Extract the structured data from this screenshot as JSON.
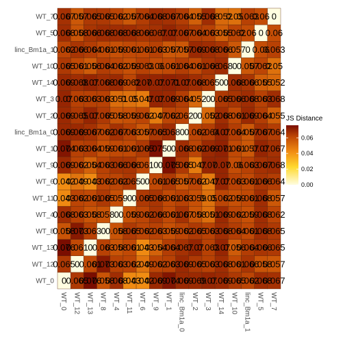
{
  "chart_data": {
    "type": "heatmap",
    "title": "",
    "xlabel": "",
    "ylabel": "",
    "labels": [
      "WT_0",
      "WT_12",
      "WT_13",
      "WT_8",
      "WT_4",
      "WT_11",
      "WT_6",
      "WT_9",
      "WT_1",
      "linc_Bm1a_0",
      "WT_2",
      "WT_3",
      "WT_14",
      "WT_10",
      "linc_Bm1a_1",
      "WT_5",
      "WT_7"
    ],
    "matrix": [
      [
        0.0,
        0.065,
        0.076,
        0.058,
        0.068,
        0.043,
        0.042,
        0.069,
        0.074,
        0.069,
        0.069,
        0.07,
        0.069,
        0.065,
        0.062,
        0.068,
        0.067
      ],
      [
        0.065,
        0.0,
        0.061,
        0.073,
        0.063,
        0.062,
        0.049,
        0.062,
        0.063,
        0.069,
        0.065,
        0.063,
        0.068,
        0.061,
        0.066,
        0.058,
        0.057
      ],
      [
        0.076,
        0.061,
        0.0,
        0.063,
        0.058,
        0.061,
        0.043,
        0.054,
        0.064,
        0.067,
        0.07,
        0.063,
        0.07,
        0.056,
        0.064,
        0.066,
        0.065
      ],
      [
        0.058,
        0.073,
        0.063,
        0.0,
        0.058,
        0.065,
        0.062,
        0.063,
        0.059,
        0.062,
        0.065,
        0.063,
        0.068,
        0.064,
        0.061,
        0.068,
        0.065
      ],
      [
        0.068,
        0.063,
        0.058,
        0.058,
        0.0,
        0.059,
        0.062,
        0.066,
        0.061,
        0.067,
        0.058,
        0.051,
        0.069,
        0.062,
        0.059,
        0.068,
        0.062
      ],
      [
        0.043,
        0.062,
        0.061,
        0.065,
        0.059,
        0.0,
        0.065,
        0.066,
        0.061,
        0.063,
        0.059,
        0.05,
        0.062,
        0.059,
        0.061,
        0.068,
        0.057
      ],
      [
        0.042,
        0.049,
        0.043,
        0.062,
        0.062,
        0.065,
        0.0,
        0.061,
        0.065,
        0.057,
        0.062,
        0.047,
        0.07,
        0.063,
        0.061,
        0.066,
        0.064
      ],
      [
        0.069,
        0.062,
        0.054,
        0.063,
        0.066,
        0.066,
        0.061,
        0.0,
        0.075,
        0.065,
        0.047,
        0.07,
        0.07,
        0.06,
        0.063,
        0.067,
        0.068
      ],
      [
        0.074,
        0.063,
        0.064,
        0.059,
        0.061,
        0.061,
        0.065,
        0.075,
        0.0,
        0.068,
        0.062,
        0.069,
        0.071,
        0.061,
        0.057,
        0.07,
        0.067
      ],
      [
        0.069,
        0.069,
        0.067,
        0.062,
        0.067,
        0.063,
        0.057,
        0.065,
        0.068,
        0.0,
        0.062,
        0.064,
        0.07,
        0.064,
        0.057,
        0.067,
        0.064
      ],
      [
        0.069,
        0.065,
        0.07,
        0.065,
        0.058,
        0.059,
        0.062,
        0.047,
        0.062,
        0.062,
        0.0,
        0.052,
        0.068,
        0.061,
        0.069,
        0.064,
        0.055
      ],
      [
        0.07,
        0.063,
        0.063,
        0.063,
        0.051,
        0.05,
        0.047,
        0.07,
        0.069,
        0.064,
        0.052,
        0.0,
        0.065,
        0.066,
        0.068,
        0.063,
        0.068
      ],
      [
        0.069,
        0.068,
        0.07,
        0.068,
        0.069,
        0.062,
        0.07,
        0.07,
        0.071,
        0.07,
        0.068,
        0.065,
        0.0,
        0.068,
        0.066,
        0.055,
        0.052
      ],
      [
        0.065,
        0.061,
        0.056,
        0.064,
        0.062,
        0.059,
        0.063,
        0.06,
        0.061,
        0.064,
        0.061,
        0.066,
        0.068,
        0.0,
        0.057,
        0.062,
        0.05
      ],
      [
        0.062,
        0.066,
        0.064,
        0.061,
        0.059,
        0.061,
        0.061,
        0.063,
        0.057,
        0.057,
        0.069,
        0.068,
        0.066,
        0.057,
        0.0,
        0.06,
        0.063
      ],
      [
        0.068,
        0.058,
        0.066,
        0.068,
        0.068,
        0.068,
        0.066,
        0.067,
        0.07,
        0.067,
        0.064,
        0.063,
        0.055,
        0.062,
        0.06,
        0.0,
        0.06
      ],
      [
        0.067,
        0.057,
        0.065,
        0.065,
        0.062,
        0.057,
        0.064,
        0.068,
        0.067,
        0.064,
        0.055,
        0.068,
        0.052,
        0.05,
        0.063,
        0.06,
        0.0
      ]
    ],
    "value_labels": [
      [
        "0",
        "0.065",
        "0.076",
        "0.058",
        "0.068",
        "0.043",
        "0.042",
        "0.069",
        "0.074",
        "0.069",
        "0.069",
        "0.07",
        "0.069",
        "0.065",
        "0.062",
        "0.068",
        "0.067"
      ],
      [
        "0.065",
        "0",
        "0.061",
        "0.073",
        "0.063",
        "0.062",
        "0.049",
        "0.062",
        "0.063",
        "0.069",
        "0.065",
        "0.063",
        "0.068",
        "0.061",
        "0.066",
        "0.058",
        "0.057"
      ],
      [
        "0.076",
        "0.061",
        "0",
        "0.063",
        "0.058",
        "0.061",
        "0.043",
        "0.054",
        "0.064",
        "0.067",
        "0.07",
        "0.063",
        "0.07",
        "0.056",
        "0.064",
        "0.066",
        "0.065"
      ],
      [
        "0.058",
        "0.073",
        "0.063",
        "0",
        "0.058",
        "0.065",
        "0.062",
        "0.063",
        "0.059",
        "0.062",
        "0.065",
        "0.063",
        "0.068",
        "0.064",
        "0.061",
        "0.068",
        "0.065"
      ],
      [
        "0.068",
        "0.063",
        "0.058",
        "0.058",
        "0",
        "0.059",
        "0.062",
        "0.066",
        "0.061",
        "0.067",
        "0.058",
        "0.051",
        "0.069",
        "0.062",
        "0.059",
        "0.068",
        "0.062"
      ],
      [
        "0.043",
        "0.062",
        "0.061",
        "0.065",
        "0.059",
        "0",
        "0.065",
        "0.066",
        "0.061",
        "0.063",
        "0.059",
        "0.05",
        "0.062",
        "0.059",
        "0.061",
        "0.068",
        "0.057"
      ],
      [
        "0.042",
        "0.049",
        "0.043",
        "0.062",
        "0.062",
        "0.065",
        "0",
        "0.061",
        "0.065",
        "0.057",
        "0.062",
        "0.047",
        "0.07",
        "0.063",
        "0.061",
        "0.066",
        "0.064"
      ],
      [
        "0.069",
        "0.062",
        "0.054",
        "0.063",
        "0.066",
        "0.066",
        "0.061",
        "0",
        "0.075",
        "0.065",
        "0.047",
        "0.07",
        "0.07",
        "0.06",
        "0.063",
        "0.067",
        "0.068"
      ],
      [
        "0.074",
        "0.063",
        "0.064",
        "0.059",
        "0.061",
        "0.061",
        "0.065",
        "0.075",
        "0",
        "0.068",
        "0.062",
        "0.069",
        "0.071",
        "0.061",
        "0.057",
        "0.07",
        "0.067"
      ],
      [
        "0.069",
        "0.069",
        "0.067",
        "0.062",
        "0.067",
        "0.063",
        "0.057",
        "0.065",
        "0.068",
        "0",
        "0.062",
        "0.064",
        "0.07",
        "0.064",
        "0.057",
        "0.067",
        "0.064"
      ],
      [
        "0.069",
        "0.065",
        "0.07",
        "0.065",
        "0.058",
        "0.059",
        "0.062",
        "0.047",
        "0.062",
        "0.062",
        "0",
        "0.052",
        "0.068",
        "0.061",
        "0.069",
        "0.064",
        "0.055"
      ],
      [
        "0.07",
        "0.063",
        "0.063",
        "0.063",
        "0.051",
        "0.05",
        "0.047",
        "0.07",
        "0.069",
        "0.064",
        "0.052",
        "0",
        "0.065",
        "0.066",
        "0.068",
        "0.063",
        "0.068"
      ],
      [
        "0.069",
        "0.068",
        "0.07",
        "0.068",
        "0.069",
        "0.062",
        "0.07",
        "0.07",
        "0.071",
        "0.07",
        "0.068",
        "0.065",
        "0",
        "0.068",
        "0.066",
        "0.055",
        "0.052"
      ],
      [
        "0.065",
        "0.061",
        "0.056",
        "0.064",
        "0.062",
        "0.059",
        "0.063",
        "0.06",
        "0.061",
        "0.064",
        "0.061",
        "0.066",
        "0.068",
        "0",
        "0.057",
        "0.062",
        "0.05"
      ],
      [
        "0.062",
        "0.066",
        "0.064",
        "0.061",
        "0.059",
        "0.061",
        "0.061",
        "0.063",
        "0.057",
        "0.057",
        "0.069",
        "0.068",
        "0.066",
        "0.057",
        "0",
        "0.06",
        "0.063"
      ],
      [
        "0.068",
        "0.058",
        "0.066",
        "0.068",
        "0.068",
        "0.068",
        "0.066",
        "0.067",
        "0.07",
        "0.067",
        "0.064",
        "0.063",
        "0.055",
        "0.062",
        "0.06",
        "0",
        "0.06"
      ],
      [
        "0.067",
        "0.057",
        "0.065",
        "0.065",
        "0.062",
        "0.057",
        "0.064",
        "0.068",
        "0.067",
        "0.064",
        "0.055",
        "0.068",
        "0.052",
        "0.05",
        "0.063",
        "0.06",
        "0"
      ]
    ],
    "legend": {
      "title": "JS Distance",
      "ticks": [
        0.0,
        0.02,
        0.04,
        0.06
      ],
      "tick_labels": [
        "0.00",
        "0.02",
        "0.04",
        "0.06"
      ],
      "range": [
        0.0,
        0.076
      ],
      "placement": "right"
    },
    "colors": {
      "low": "#fffde0",
      "mid1": "#ffd92f",
      "mid2": "#f28e13",
      "mid3": "#c24a05",
      "high": "#7a0d00",
      "cell_border": "#5a2a10",
      "text": "#000000",
      "axis_text": "#4d4d4d"
    },
    "grid": false
  }
}
